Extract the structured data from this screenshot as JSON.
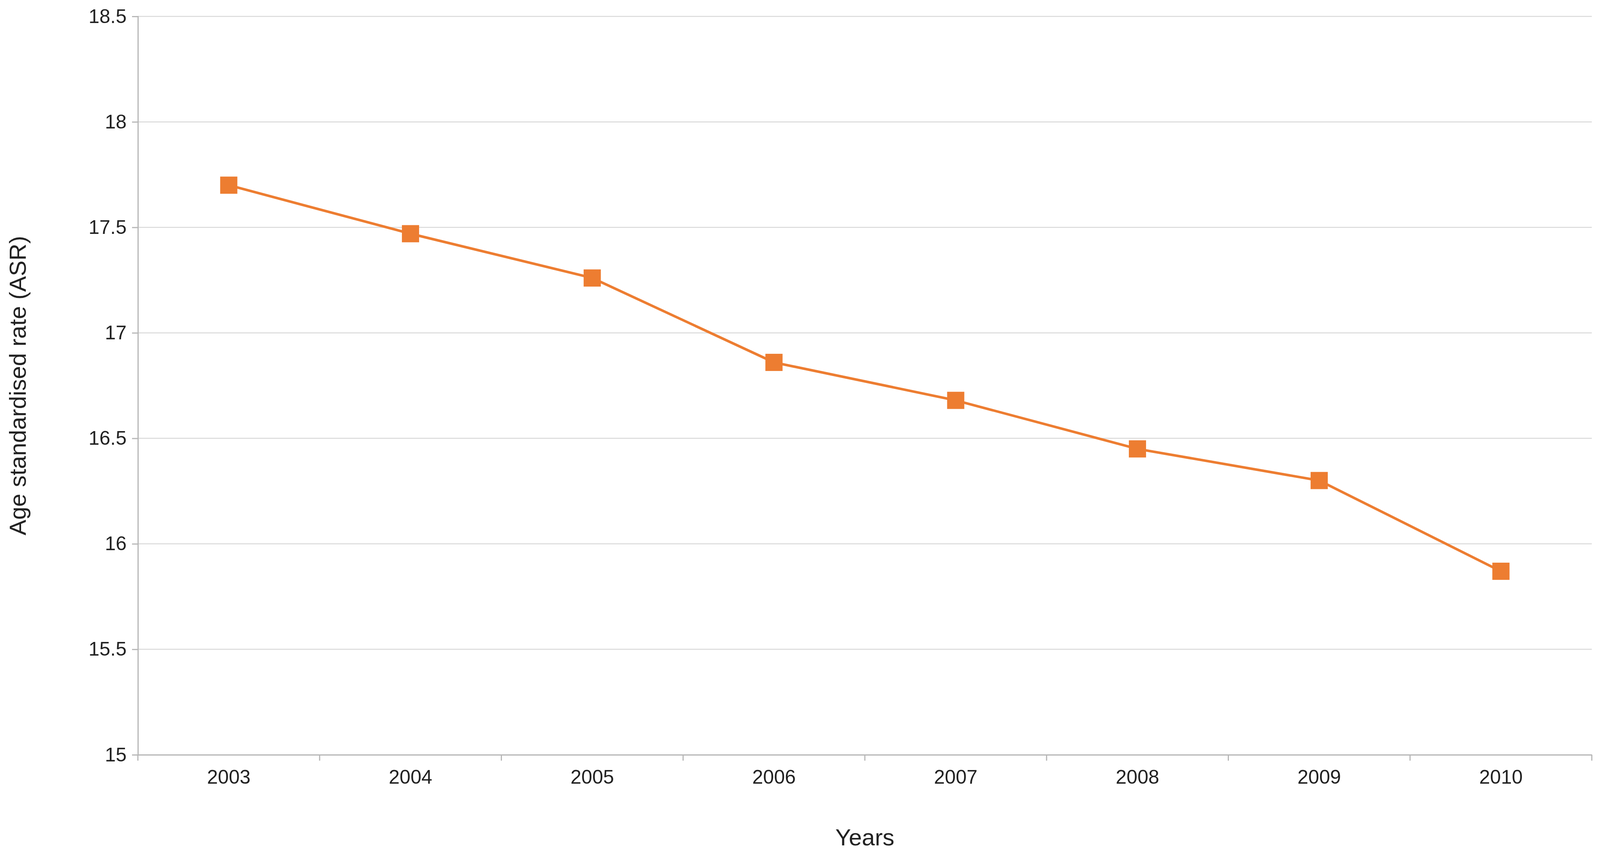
{
  "chart_data": {
    "type": "line",
    "x_label": "Years",
    "y_label": "Age standardised rate (ASR)",
    "categories": [
      "2003",
      "2004",
      "2005",
      "2006",
      "2007",
      "2008",
      "2009",
      "2010"
    ],
    "values": [
      17.7,
      17.47,
      17.26,
      16.86,
      16.68,
      16.45,
      16.3,
      15.87
    ],
    "color": "#ed7d31",
    "marker": "square",
    "ylim": [
      15,
      18.5
    ],
    "yticks": [
      15,
      15.5,
      16,
      16.5,
      17,
      17.5,
      18,
      18.5
    ],
    "grid": true
  }
}
